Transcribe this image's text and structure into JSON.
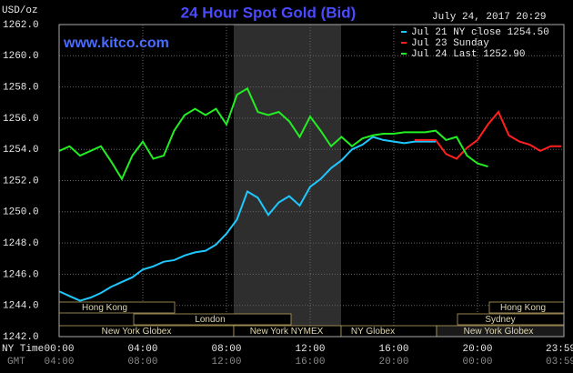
{
  "chart_data": {
    "type": "line",
    "title": "24 Hour Spot Gold (Bid)",
    "subtitle": "www.kitco.com",
    "y_label": "USD/oz",
    "timestamp": "July 24, 2017 20:29",
    "x_label": "NY Time",
    "x2_label": "GMT",
    "xlim": [
      0,
      24
    ],
    "xticks": [
      {
        "value": 0,
        "label": "00:00"
      },
      {
        "value": 4,
        "label": "04:00"
      },
      {
        "value": 8,
        "label": "08:00"
      },
      {
        "value": 12,
        "label": "12:00"
      },
      {
        "value": 16,
        "label": "16:00"
      },
      {
        "value": 20,
        "label": "20:00"
      },
      {
        "value": 23.98,
        "label": "23:59"
      }
    ],
    "gmt_labels": [
      "04:00",
      "08:00",
      "12:00",
      "16:00",
      "20:00",
      "00:00",
      "03:59"
    ],
    "ylim": [
      1242,
      1262
    ],
    "yticks": [
      {
        "value": 1242,
        "label": "1242.0"
      },
      {
        "value": 1244,
        "label": "1244.0"
      },
      {
        "value": 1246,
        "label": "1246.0"
      },
      {
        "value": 1248,
        "label": "1248.0"
      },
      {
        "value": 1250,
        "label": "1250.0"
      },
      {
        "value": 1252,
        "label": "1252.0"
      },
      {
        "value": 1254,
        "label": "1254.0"
      },
      {
        "value": 1256,
        "label": "1256.0"
      },
      {
        "value": 1258,
        "label": "1258.0"
      },
      {
        "value": 1260,
        "label": "1260.0"
      },
      {
        "value": 1262,
        "label": "1262.0"
      }
    ],
    "grid": true,
    "x": [
      0,
      0.5,
      1,
      1.5,
      2,
      2.5,
      3,
      3.5,
      4,
      4.5,
      5,
      5.5,
      6,
      6.5,
      7,
      7.5,
      8,
      8.5,
      9,
      9.5,
      10,
      10.5,
      11,
      11.5,
      12,
      12.5,
      13,
      13.5,
      14,
      14.5,
      15,
      15.5,
      16,
      16.5,
      17,
      17.5,
      18,
      18.5,
      19,
      19.5,
      20,
      20.5,
      21,
      21.5,
      22,
      22.5,
      23,
      23.5,
      24
    ],
    "series": [
      {
        "name": "Jul 21 NY close 1254.50",
        "color": "#1ec8ff",
        "values": [
          1244.9,
          1244.6,
          1244.3,
          1244.5,
          1244.8,
          1245.2,
          1245.5,
          1245.8,
          1246.3,
          1246.5,
          1246.8,
          1246.9,
          1247.2,
          1247.4,
          1247.5,
          1247.9,
          1248.6,
          1249.5,
          1251.3,
          1250.9,
          1249.8,
          1250.6,
          1251.0,
          1250.4,
          1251.6,
          1252.1,
          1252.8,
          1253.3,
          1254.0,
          1254.3,
          1254.8,
          1254.6,
          1254.5,
          1254.4,
          1254.5,
          1254.5,
          1254.5,
          null,
          null,
          null,
          null,
          null,
          null,
          null,
          null,
          null,
          null,
          null,
          null
        ]
      },
      {
        "name": "Jul 23 Sunday",
        "color": "#ff2020",
        "values": [
          null,
          null,
          null,
          null,
          null,
          null,
          null,
          null,
          null,
          null,
          null,
          null,
          null,
          null,
          null,
          null,
          null,
          null,
          null,
          null,
          null,
          null,
          null,
          null,
          null,
          null,
          null,
          null,
          null,
          null,
          null,
          null,
          null,
          null,
          1254.6,
          1254.6,
          1254.6,
          1253.7,
          1253.4,
          1254.1,
          1254.6,
          1255.6,
          1256.4,
          1254.9,
          1254.5,
          1254.3,
          1253.9,
          1254.2,
          1254.2
        ]
      },
      {
        "name": "Jul 24 Last 1252.90",
        "color": "#22ee22",
        "values": [
          1253.9,
          1254.2,
          1253.6,
          1253.9,
          1254.2,
          1253.2,
          1252.1,
          1253.6,
          1254.5,
          1253.4,
          1253.6,
          1255.2,
          1256.2,
          1256.6,
          1256.2,
          1256.6,
          1255.6,
          1257.5,
          1257.9,
          1256.4,
          1256.2,
          1256.4,
          1255.8,
          1254.8,
          1256.1,
          1255.2,
          1254.2,
          1254.8,
          1254.2,
          1254.7,
          1254.9,
          1255.0,
          1255.0,
          1255.1,
          1255.1,
          1255.1,
          1255.2,
          1254.6,
          1254.8,
          1253.6,
          1253.1,
          1252.9,
          null,
          null,
          null,
          null,
          null,
          null,
          null
        ]
      }
    ],
    "sessions": [
      "Hong Kong",
      "London",
      "New York Globex",
      "New York NYMEX",
      "NY Globex",
      "Hong Kong",
      "Sydney",
      "New York Globex"
    ]
  }
}
